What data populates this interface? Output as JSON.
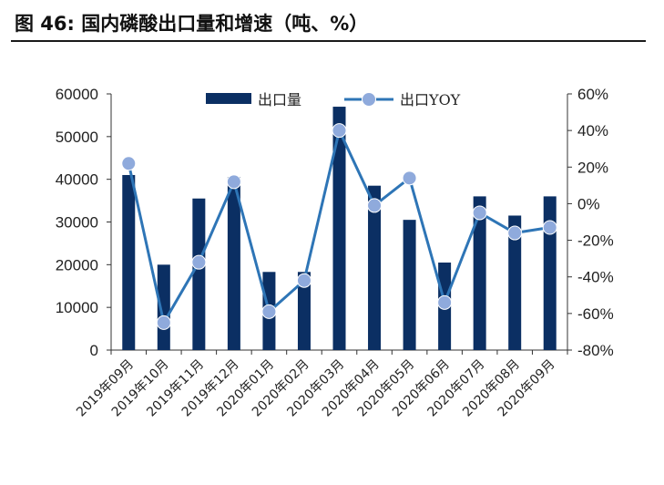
{
  "figure": {
    "title": "图 46:  国内磷酸出口量和增速（吨、%）"
  },
  "chart_data": {
    "type": "bar",
    "categories": [
      "2019年09月",
      "2019年10月",
      "2019年11月",
      "2019年12月",
      "2020年01月",
      "2020年02月",
      "2020年03月",
      "2020年04月",
      "2020年05月",
      "2020年06月",
      "2020年07月",
      "2020年08月",
      "2020年09月"
    ],
    "series": [
      {
        "name": "出口量",
        "type": "bar",
        "axis": "left",
        "color": "#0b2f63",
        "values": [
          41000,
          20000,
          35500,
          40500,
          18300,
          18300,
          57000,
          38500,
          30500,
          20500,
          36000,
          31500,
          36000
        ]
      },
      {
        "name": "出口YOY",
        "type": "line",
        "axis": "right",
        "color": "#2e75b6",
        "marker_color": "#8faadc",
        "values": [
          22,
          -65,
          -32,
          12,
          -59,
          -42,
          40,
          -1,
          14,
          -54,
          -5,
          -16,
          -13
        ]
      }
    ],
    "y_left": {
      "min": 0,
      "max": 60000,
      "ticks": [
        "0",
        "10000",
        "20000",
        "30000",
        "40000",
        "50000",
        "60000"
      ]
    },
    "y_right": {
      "min": -80,
      "max": 60,
      "ticks": [
        "-80%",
        "-60%",
        "-40%",
        "-20%",
        "0%",
        "20%",
        "40%",
        "60%"
      ]
    },
    "legend_position": "top-center",
    "grid": false
  }
}
